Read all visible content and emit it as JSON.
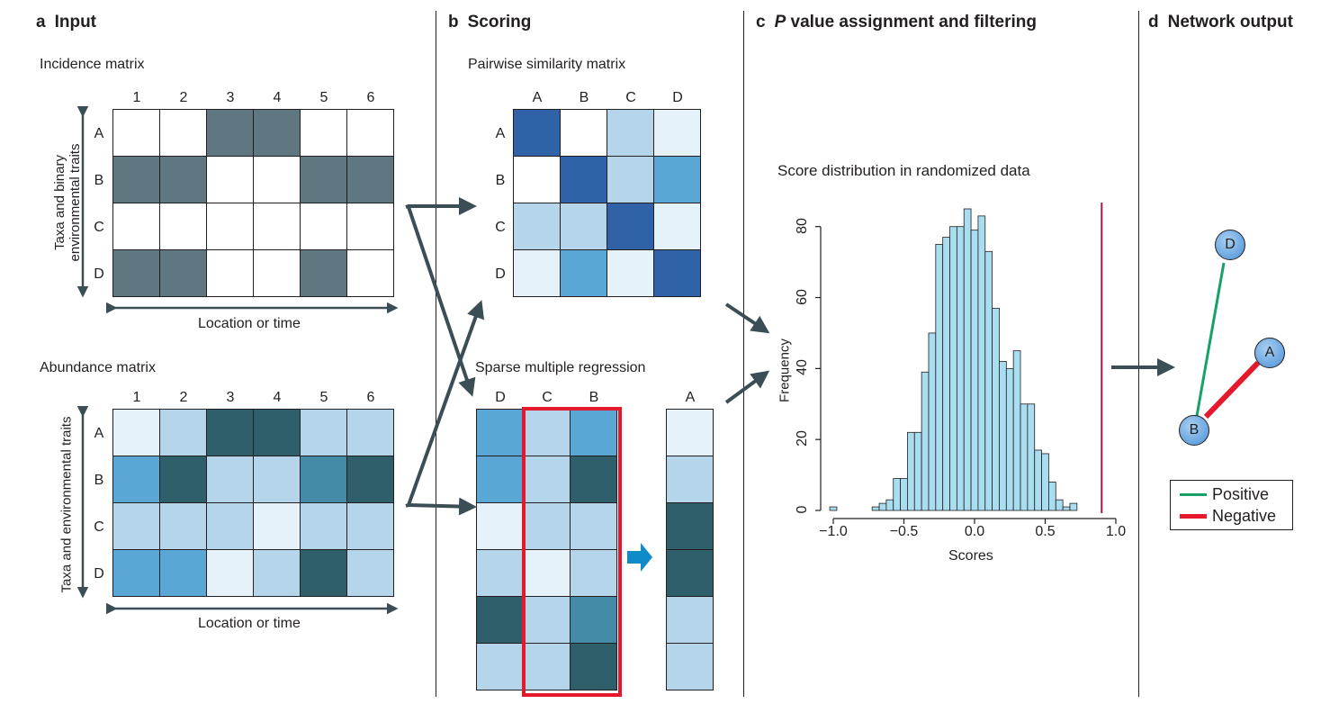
{
  "colors": {
    "incidence_filled": "#5f7780",
    "empty": "#ffffff",
    "shade1": "#e5f2fa",
    "shade2": "#b5d5ea",
    "shade3": "#5aa7d5",
    "shade4": "#448ba8",
    "shade5": "#2e5f6b",
    "sim_strong": "#2f62a7",
    "positive": "#17a167",
    "negative": "#e5192c",
    "hist_fill": "#a9ddf0",
    "arrow": "#3b4e55",
    "blue_arrow": "#0d8cc9",
    "select_box": "#e5192c",
    "threshold_line": "#b4123f"
  },
  "panel_a": {
    "letter": "a",
    "title": "Input",
    "incidence_title": "Incidence matrix",
    "abundance_title": "Abundance matrix",
    "columns": [
      "1",
      "2",
      "3",
      "4",
      "5",
      "6"
    ],
    "rows": [
      "A",
      "B",
      "C",
      "D"
    ],
    "incidence_ylabel_line1": "Taxa and binary",
    "incidence_ylabel_line2": "environmental traits",
    "abundance_ylabel": "Taxa and environmental traits",
    "xlabel": "Location or time",
    "incidence_values": [
      [
        0,
        0,
        1,
        1,
        0,
        0
      ],
      [
        1,
        1,
        0,
        0,
        1,
        1
      ],
      [
        0,
        0,
        0,
        0,
        0,
        0
      ],
      [
        1,
        1,
        0,
        0,
        1,
        0
      ]
    ],
    "abundance_values": [
      [
        1,
        2,
        5,
        5,
        2,
        2
      ],
      [
        3,
        5,
        2,
        2,
        4,
        5
      ],
      [
        2,
        2,
        2,
        1,
        2,
        2
      ],
      [
        3,
        3,
        1,
        2,
        5,
        2
      ]
    ]
  },
  "panel_b": {
    "letter": "b",
    "title": "Scoring",
    "similarity_title": "Pairwise similarity matrix",
    "similarity_columns": [
      "A",
      "B",
      "C",
      "D"
    ],
    "similarity_rows": [
      "A",
      "B",
      "C",
      "D"
    ],
    "similarity_values": [
      [
        6,
        0,
        2,
        1
      ],
      [
        0,
        6,
        2,
        3
      ],
      [
        2,
        2,
        6,
        1
      ],
      [
        1,
        3,
        1,
        6
      ]
    ],
    "regression_title": "Sparse multiple regression",
    "predictor_columns": [
      "D",
      "C",
      "B"
    ],
    "predictor_values": [
      [
        3,
        2,
        3
      ],
      [
        3,
        2,
        5
      ],
      [
        1,
        2,
        2
      ],
      [
        2,
        1,
        2
      ],
      [
        5,
        2,
        4
      ],
      [
        2,
        2,
        5
      ]
    ],
    "response_column": "A",
    "response_values": [
      1,
      2,
      5,
      5,
      2,
      2
    ]
  },
  "panel_c": {
    "letter": "c",
    "title_italic": "P",
    "title_rest": " value assignment and filtering",
    "hist_title": "Score distribution in randomized data",
    "xlabel": "Scores",
    "ylabel": "Frequency",
    "y_ticks": [
      "0",
      "20",
      "40",
      "60",
      "80"
    ],
    "x_ticks": [
      "−1.0",
      "−0.5",
      "0.0",
      "0.5",
      "1.0"
    ]
  },
  "panel_d": {
    "letter": "d",
    "title": "Network output",
    "nodes": [
      "D",
      "A",
      "B"
    ],
    "legend_positive": "Positive",
    "legend_negative": "Negative"
  },
  "chart_data": {
    "type": "bar",
    "title": "Score distribution in randomized data",
    "xlabel": "Scores",
    "ylabel": "Frequency",
    "xlim": [
      -1.0,
      1.0
    ],
    "ylim": [
      0,
      85
    ],
    "bin_width": 0.05,
    "x": [
      -1.0,
      -0.95,
      -0.9,
      -0.85,
      -0.8,
      -0.75,
      -0.7,
      -0.65,
      -0.6,
      -0.55,
      -0.5,
      -0.45,
      -0.4,
      -0.35,
      -0.3,
      -0.25,
      -0.2,
      -0.15,
      -0.1,
      -0.05,
      0.0,
      0.05,
      0.1,
      0.15,
      0.2,
      0.25,
      0.3,
      0.35,
      0.4,
      0.45,
      0.5,
      0.55,
      0.6,
      0.65,
      0.7,
      0.75,
      0.8,
      0.85,
      0.9
    ],
    "values": [
      1,
      0,
      0,
      0,
      0,
      0,
      1,
      2,
      3,
      9,
      9,
      22,
      22,
      39,
      50,
      75,
      77,
      80,
      80,
      85,
      79,
      83,
      73,
      57,
      42,
      40,
      45,
      30,
      30,
      17,
      16,
      8,
      3,
      1,
      2,
      0,
      0,
      0,
      0
    ],
    "threshold": 0.9
  }
}
